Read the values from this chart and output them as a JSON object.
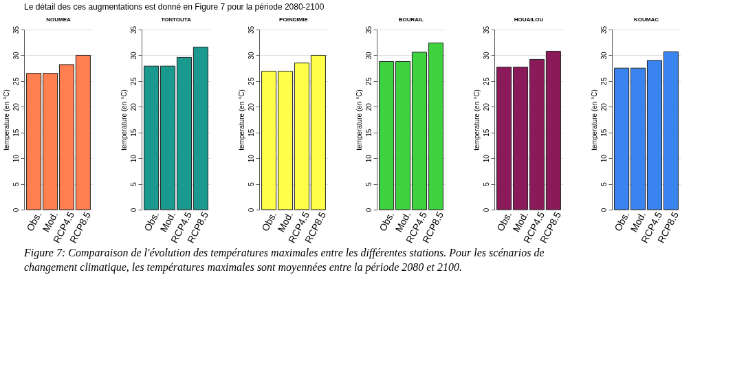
{
  "chart_data": [
    {
      "type": "bar",
      "title": "NOUMEA",
      "ylabel": "temperature (en °C)",
      "categories": [
        "Obs.",
        "Mod.",
        "RCP4.5",
        "RCP8.5"
      ],
      "values": [
        26.5,
        26.5,
        28.2,
        30.0
      ],
      "color": "#ff7f50",
      "ylim": [
        0,
        35
      ],
      "yticks": [
        0,
        5,
        10,
        15,
        20,
        25,
        30,
        35
      ],
      "grid": "y",
      "annotations": [
        "Le détail des ces augmentations est donné en Figure 7 pour la période 2080-2100",
        "Figure 7: Comparaison de l'évolution des températures maximales entre les différentes stations. Pour les scénarios de changement climatique, les températures maximales sont moyennées entre la période 2080 et 2100."
      ]
    },
    {
      "type": "bar",
      "title": "TONTOUTA",
      "ylabel": "temperature (en °C)",
      "categories": [
        "Obs.",
        "Mod.",
        "RCP4.5",
        "RCP8.5"
      ],
      "values": [
        27.9,
        27.9,
        29.6,
        31.6
      ],
      "color": "#1a9a8f",
      "ylim": [
        0,
        35
      ],
      "yticks": [
        0,
        5,
        10,
        15,
        20,
        25,
        30,
        35
      ],
      "grid": "y"
    },
    {
      "type": "bar",
      "title": "POINDIMIE",
      "ylabel": "temperature (en °C)",
      "categories": [
        "Obs.",
        "Mod.",
        "RCP4.5",
        "RCP8.5"
      ],
      "values": [
        26.9,
        26.9,
        28.5,
        30.0
      ],
      "color": "#ffff4a",
      "ylim": [
        0,
        35
      ],
      "yticks": [
        0,
        5,
        10,
        15,
        20,
        25,
        30,
        35
      ],
      "grid": "y"
    },
    {
      "type": "bar",
      "title": "BOURAIL",
      "ylabel": "temperature (en °C)",
      "categories": [
        "Obs.",
        "Mod.",
        "RCP4.5",
        "RCP8.5"
      ],
      "values": [
        28.8,
        28.8,
        30.6,
        32.4
      ],
      "color": "#3fd23f",
      "ylim": [
        0,
        35
      ],
      "yticks": [
        0,
        5,
        10,
        15,
        20,
        25,
        30,
        35
      ],
      "grid": "y"
    },
    {
      "type": "bar",
      "title": "HOUAILOU",
      "ylabel": "temperature (en °C)",
      "categories": [
        "Obs.",
        "Mod.",
        "RCP4.5",
        "RCP8.5"
      ],
      "values": [
        27.7,
        27.7,
        29.2,
        30.8
      ],
      "color": "#8b1a5a",
      "ylim": [
        0,
        35
      ],
      "yticks": [
        0,
        5,
        10,
        15,
        20,
        25,
        30,
        35
      ],
      "grid": "y"
    },
    {
      "type": "bar",
      "title": "KOUMAC",
      "ylabel": "temperature (en °C)",
      "categories": [
        "Obs.",
        "Mod.",
        "RCP4.5",
        "RCP8.5"
      ],
      "values": [
        27.5,
        27.5,
        29.0,
        30.7
      ],
      "color": "#3a84f0",
      "ylim": [
        0,
        35
      ],
      "yticks": [
        0,
        5,
        10,
        15,
        20,
        25,
        30,
        35
      ],
      "grid": "y"
    }
  ]
}
